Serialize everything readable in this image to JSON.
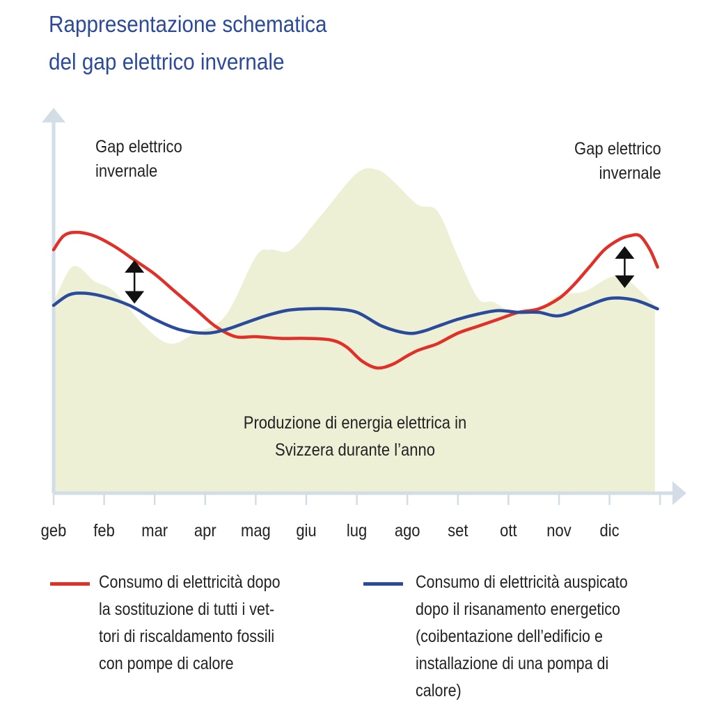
{
  "header": {
    "title_line1": "Rappresentazione schematica",
    "title_line2": "del gap elettrico invernale"
  },
  "chart_data": {
    "type": "area",
    "categories": [
      "geb",
      "feb",
      "mar",
      "apr",
      "mag",
      "giu",
      "lug",
      "ago",
      "set",
      "ott",
      "nov",
      "dic"
    ],
    "ylim": [
      0,
      100
    ],
    "grid": false,
    "annotations": {
      "gap_left": [
        "Gap elettrico",
        "invernale"
      ],
      "gap_right": [
        "Gap elettrico",
        "invernale"
      ],
      "production": [
        "Produzione di energia elettrica in",
        "Svizzera durante l’anno"
      ]
    },
    "series": [
      {
        "key": "production",
        "color": "#eef0d6",
        "x": [
          0,
          0.3,
          0.5,
          0.8,
          1.2,
          1.8,
          2.3,
          2.8,
          3.4,
          4.0,
          4.3,
          4.7,
          5.3,
          6.0,
          6.4,
          6.7,
          7.2,
          7.6,
          8.0,
          8.4,
          8.7,
          9.1,
          9.6,
          10.0,
          10.5,
          11.0,
          11.3,
          11.9
        ],
        "values": [
          55,
          64,
          65,
          61,
          58,
          48,
          43,
          46,
          51,
          68,
          70,
          70,
          80,
          92,
          93,
          90,
          83,
          81,
          68,
          56,
          55,
          52,
          53,
          57,
          58,
          62,
          62,
          54
        ]
      },
      {
        "key": "red",
        "color": "#e03027",
        "x": [
          0,
          0.2,
          0.45,
          0.8,
          1.2,
          1.6,
          2.0,
          2.4,
          2.8,
          3.2,
          3.6,
          4.0,
          4.5,
          5.0,
          5.5,
          5.8,
          6.1,
          6.4,
          6.7,
          7.0,
          7.2,
          7.4,
          7.6,
          8.0,
          8.4,
          8.8,
          9.2,
          9.6,
          10.0,
          10.3,
          10.6,
          10.9,
          11.2,
          11.4,
          11.6,
          11.8,
          11.95
        ],
        "values": [
          70,
          74,
          75,
          74,
          71,
          67,
          63,
          58,
          53,
          48,
          45,
          45,
          44.5,
          44.5,
          44,
          42,
          38,
          36,
          37,
          39.5,
          41,
          42,
          43,
          46,
          48,
          50,
          52,
          53,
          56,
          60,
          65,
          70,
          73,
          74,
          74,
          70,
          65
        ]
      },
      {
        "key": "blue",
        "color": "#2a4a9c",
        "x": [
          0,
          0.3,
          0.6,
          1.0,
          1.5,
          2.0,
          2.5,
          3.0,
          3.4,
          3.8,
          4.2,
          4.6,
          5.0,
          5.5,
          6.0,
          6.5,
          7.0,
          7.3,
          7.6,
          8.0,
          8.4,
          8.8,
          9.2,
          9.6,
          10.0,
          10.5,
          11.0,
          11.5,
          11.95
        ],
        "values": [
          54,
          57,
          57.5,
          56.5,
          54,
          50,
          47,
          46,
          47,
          49,
          51,
          52.5,
          53,
          53,
          52,
          48,
          46,
          46.5,
          48,
          50,
          51.5,
          52.5,
          52,
          52,
          51,
          53.5,
          56,
          55.5,
          53
        ]
      }
    ],
    "legend": [
      {
        "series": "red",
        "color": "#e03027",
        "lines": [
          "Consumo di elettricità dopo",
          "la sostituzione di tutti i vet-",
          "tori di riscaldamento fossili",
          "con pompe di calore"
        ]
      },
      {
        "series": "blue",
        "color": "#2a4a9c",
        "lines": [
          "Consumo di elettricità auspicato",
          "dopo il risanamento energetico",
          "(coibentazione dell’edificio e",
          "installazione di una pompa di",
          "calore)"
        ]
      }
    ]
  }
}
